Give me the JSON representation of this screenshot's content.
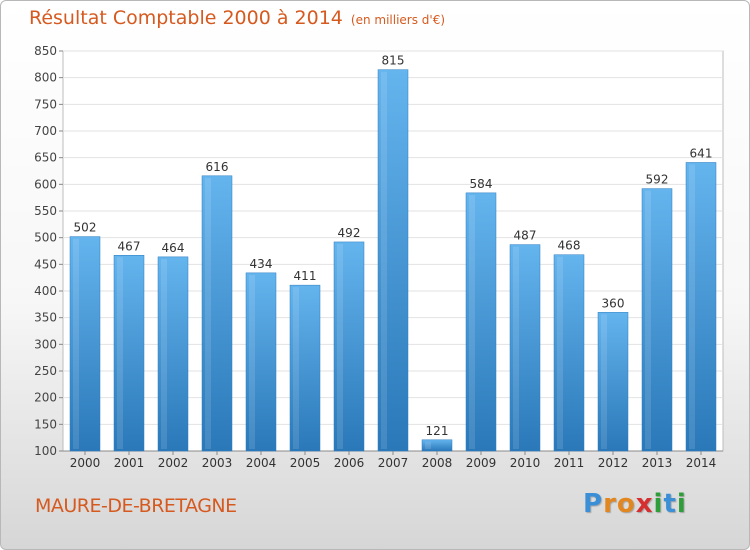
{
  "title": "Résultat Comptable 2000 à 2014",
  "subtitle": "(en milliers d'€)",
  "commune": "MAURE-DE-BRETAGNE",
  "logo": {
    "letters": [
      "P",
      "r",
      "o",
      "x",
      "i",
      "t",
      "i"
    ],
    "colors": [
      "#3a8fd6",
      "#e2871f",
      "#e2871f",
      "#d62f2f",
      "#2f9d3a",
      "#3a8fd6",
      "#2f9d3a"
    ]
  },
  "colors": {
    "title": "#d65a1f",
    "bar": "#3d97da",
    "bar_light": "#64b4ee",
    "bar_dark": "#2a78b8"
  },
  "chart_data": {
    "type": "bar",
    "title": "Résultat Comptable 2000 à 2014",
    "categories": [
      "2000",
      "2001",
      "2002",
      "2003",
      "2004",
      "2005",
      "2006",
      "2007",
      "2008",
      "2009",
      "2010",
      "2011",
      "2012",
      "2013",
      "2014"
    ],
    "values": [
      502,
      467,
      464,
      616,
      434,
      411,
      492,
      815,
      121,
      584,
      487,
      468,
      360,
      592,
      641
    ],
    "ylim": [
      100,
      850
    ],
    "yticks": [
      100,
      150,
      200,
      250,
      300,
      350,
      400,
      450,
      500,
      550,
      600,
      650,
      700,
      750,
      800,
      850
    ],
    "grid": true
  }
}
